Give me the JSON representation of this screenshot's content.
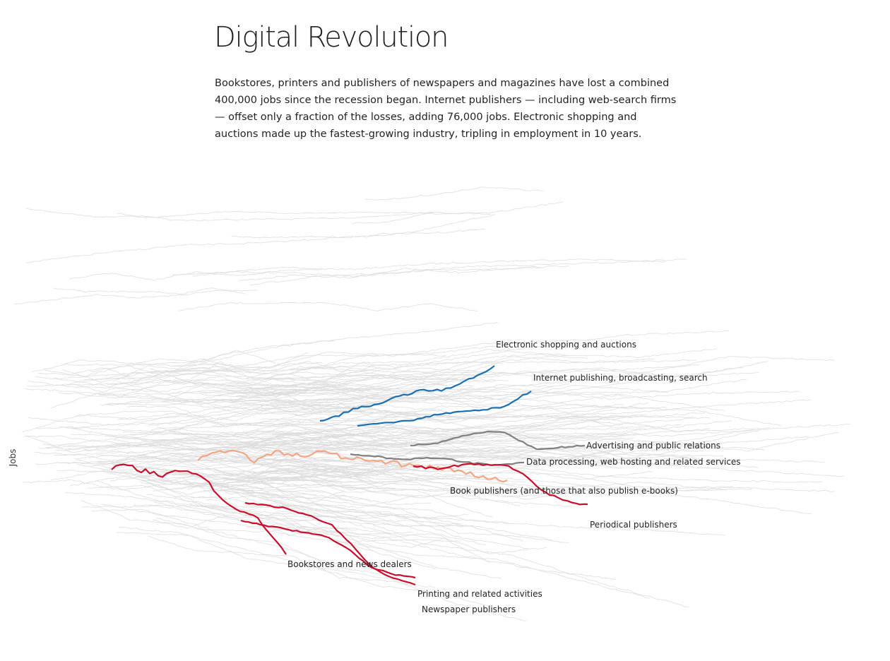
{
  "page": {
    "title": "Digital Revolution",
    "intro": "Bookstores, printers and publishers of newspapers and magazines have lost a combined 400,000 jobs since the recession began. Internet publishers — including web-search firms — offset only a fraction of the losses, adding 76,000 jobs. Electronic shopping and auctions made up the fastest-growing industry, tripling in employment in 10 years."
  },
  "chart_data": {
    "type": "line",
    "ylabel": "Jobs",
    "xlabel": "",
    "grid": false,
    "legend": "direct labels",
    "colors": {
      "growth": "#1a6faf",
      "neutral": "#808080",
      "decline_mild": "#f4a582",
      "decline_strong": "#c8102e",
      "background": "#dcdcdc"
    },
    "series": [
      {
        "name": "Electronic shopping and auctions",
        "group": "growth"
      },
      {
        "name": "Internet publishing, broadcasting, search",
        "group": "growth"
      },
      {
        "name": "Advertising and public relations",
        "group": "neutral"
      },
      {
        "name": "Data processing, web hosting and related services",
        "group": "neutral"
      },
      {
        "name": "Book publishers (and those that also publish e-books)",
        "group": "decline_mild"
      },
      {
        "name": "Periodical publishers",
        "group": "decline_strong"
      },
      {
        "name": "Bookstores and news dealers",
        "group": "decline_strong"
      },
      {
        "name": "Printing and related activities",
        "group": "decline_strong"
      },
      {
        "name": "Newspaper publishers",
        "group": "decline_strong"
      }
    ]
  }
}
